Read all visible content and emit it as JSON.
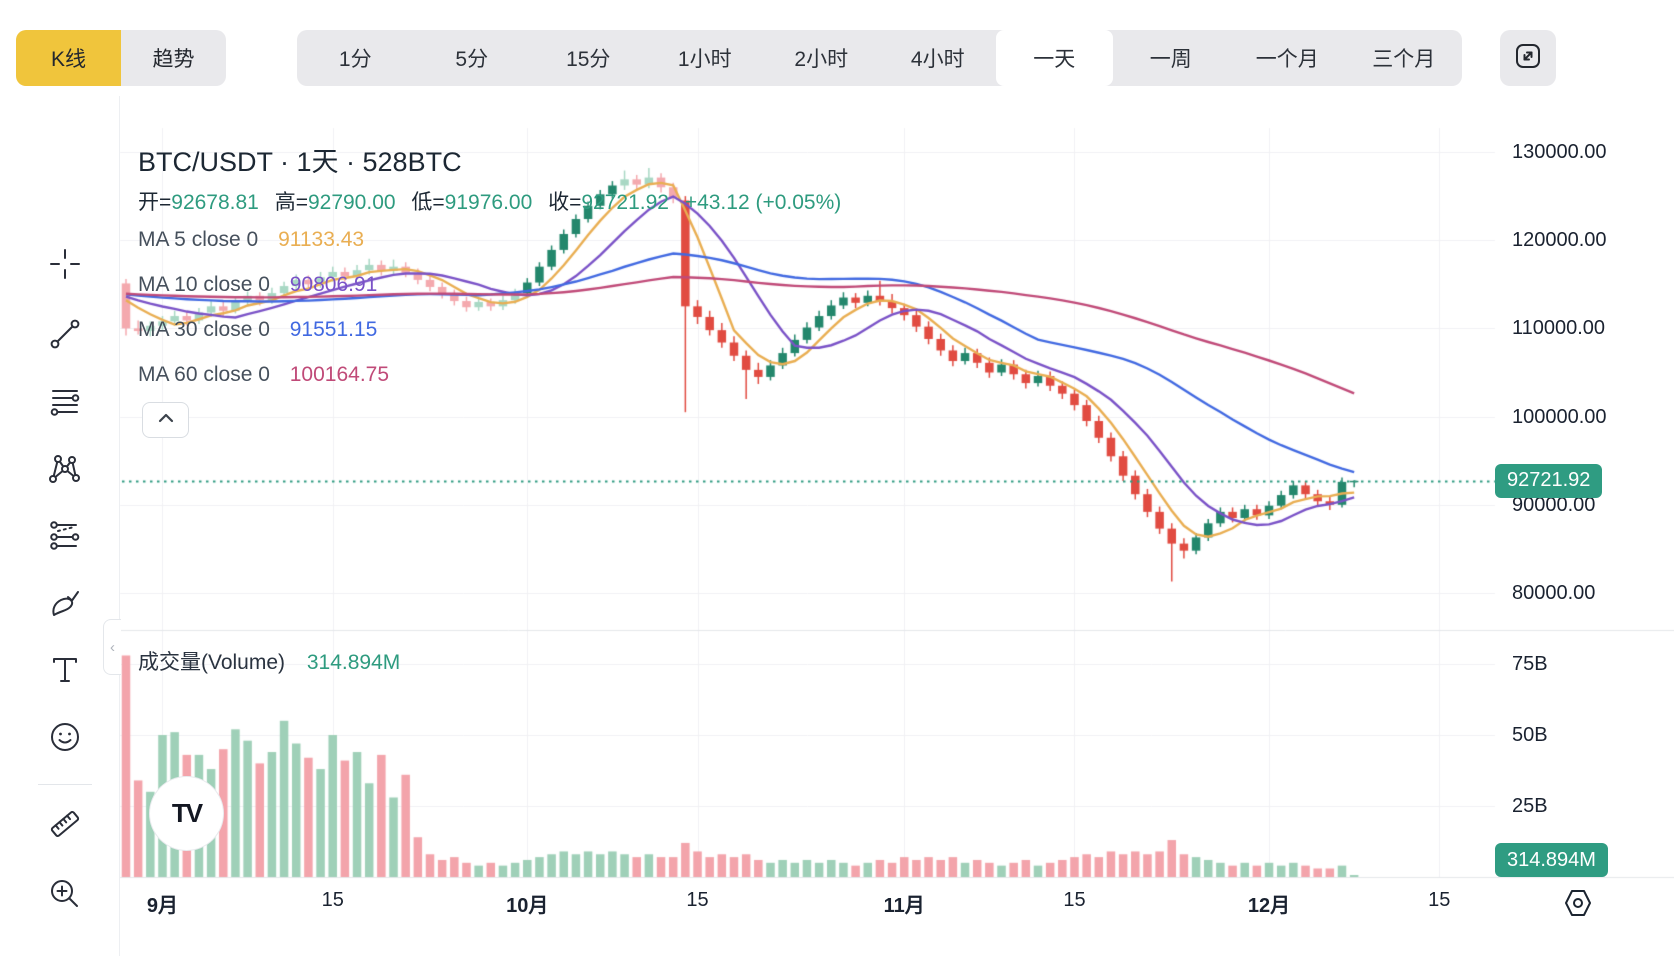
{
  "header": {
    "mode_tabs": [
      {
        "label": "K线",
        "active": true
      },
      {
        "label": "趋势",
        "active": false
      }
    ],
    "timeframes": [
      {
        "label": "1分"
      },
      {
        "label": "5分"
      },
      {
        "label": "15分"
      },
      {
        "label": "1小时"
      },
      {
        "label": "2小时"
      },
      {
        "label": "4小时"
      },
      {
        "label": "一天",
        "active": true
      },
      {
        "label": "一周"
      },
      {
        "label": "一个月"
      },
      {
        "label": "三个月"
      }
    ],
    "accent_yellow": "#F0C53C"
  },
  "sidebar": {
    "tools": [
      "crosshair",
      "trend-line",
      "horizontal-lines",
      "xabcd-pattern",
      "forecast",
      "brush",
      "text",
      "emoji",
      "ruler",
      "zoom-in"
    ]
  },
  "legend": {
    "title": "BTC/USDT · 1天 · 528BTC",
    "ohlc": {
      "open_label": "开=",
      "open": "92678.81",
      "high_label": "高=",
      "high": "92790.00",
      "low_label": "低=",
      "low": "91976.00",
      "close_label": "收=",
      "close": "92721.92",
      "change": "+43.12 (+0.05%)"
    },
    "ma_rows": [
      {
        "label": "MA 5 close 0",
        "value": "91133.43",
        "color": "#E9AE52"
      },
      {
        "label": "MA 10 close 0",
        "value": "90806.91",
        "color": "#7A52C7"
      },
      {
        "label": "MA 30 close 0",
        "value": "91551.15",
        "color": "#4169E1"
      },
      {
        "label": "MA 60 close 0",
        "value": "100164.75",
        "color": "#C04A78"
      }
    ],
    "volume_label": "成交量(Volume)",
    "volume_value": "314.894M"
  },
  "badges": {
    "price": "92721.92",
    "volume": "314.894M"
  },
  "watermark": "TV",
  "chart_data": {
    "type": "candlestick",
    "title": "BTC/USDT 1天",
    "ylabel": "USDT",
    "price_ticks": [
      {
        "label": "130000.00",
        "value": 130000
      },
      {
        "label": "120000.00",
        "value": 120000
      },
      {
        "label": "110000.00",
        "value": 110000
      },
      {
        "label": "100000.00",
        "value": 100000
      },
      {
        "label": "90000.00",
        "value": 90000
      },
      {
        "label": "80000.00",
        "value": 80000
      }
    ],
    "volume_ticks": [
      {
        "label": "75B",
        "value": 75
      },
      {
        "label": "50B",
        "value": 50
      },
      {
        "label": "25B",
        "value": 25
      }
    ],
    "time_ticks": [
      {
        "label": "9月",
        "index": 3,
        "bold": true
      },
      {
        "label": "15",
        "index": 17,
        "bold": false
      },
      {
        "label": "10月",
        "index": 33,
        "bold": true
      },
      {
        "label": "15",
        "index": 47,
        "bold": false
      },
      {
        "label": "11月",
        "index": 64,
        "bold": true
      },
      {
        "label": "15",
        "index": 78,
        "bold": false
      },
      {
        "label": "12月",
        "index": 94,
        "bold": true
      },
      {
        "label": "15",
        "index": 108,
        "bold": false
      }
    ],
    "last_close": 92721.92,
    "ma_periods": [
      5,
      10,
      30,
      60
    ],
    "ma_seed": 114000,
    "colors": {
      "up": "#23876C",
      "down": "#E14B41",
      "up_muted": "#A8D8C4",
      "down_muted": "#F4A9AE",
      "vol_up": "#9FD0B8",
      "vol_down": "#F3A4AB",
      "ma5": "#E9AE52",
      "ma10": "#7A52C7",
      "ma30": "#4169E1",
      "ma60": "#C04A78",
      "grid": "#F0F1F4",
      "separator": "#E4E7EA",
      "dotted": "#2E9B80"
    },
    "muted_indices": [
      0,
      1,
      2,
      3,
      4,
      5,
      6,
      7,
      8,
      9,
      10,
      11,
      12,
      13,
      14,
      15,
      16,
      17,
      18,
      19,
      20,
      21,
      22,
      23,
      24,
      25,
      26,
      27,
      28,
      29,
      30,
      31,
      32,
      41,
      42,
      43,
      44,
      45
    ],
    "candles": [
      [
        115100,
        115600,
        109200,
        110000,
        78
      ],
      [
        110000,
        110900,
        109300,
        109700,
        34
      ],
      [
        109700,
        110800,
        109100,
        110300,
        30
      ],
      [
        110300,
        111400,
        109800,
        110800,
        50
      ],
      [
        110800,
        112000,
        110300,
        111400,
        51
      ],
      [
        111400,
        111900,
        110300,
        110900,
        43
      ],
      [
        110900,
        112300,
        110500,
        111800,
        43
      ],
      [
        111800,
        113100,
        111300,
        112500,
        38
      ],
      [
        112500,
        113000,
        111400,
        112000,
        45
      ],
      [
        112000,
        113600,
        111700,
        113000,
        52
      ],
      [
        113000,
        114200,
        112500,
        113700,
        48
      ],
      [
        113700,
        114100,
        112600,
        113200,
        40
      ],
      [
        113200,
        114600,
        112800,
        114000,
        44
      ],
      [
        114000,
        115300,
        113500,
        114800,
        55
      ],
      [
        114800,
        116100,
        114300,
        115500,
        47
      ],
      [
        115500,
        116000,
        114400,
        115000,
        42
      ],
      [
        115000,
        116400,
        114600,
        115800,
        38
      ],
      [
        115800,
        117000,
        115300,
        116400,
        50
      ],
      [
        116400,
        116900,
        115300,
        115900,
        41
      ],
      [
        115900,
        117200,
        115500,
        116600,
        44
      ],
      [
        116600,
        117900,
        116100,
        117200,
        33
      ],
      [
        117200,
        117700,
        116000,
        116500,
        43
      ],
      [
        116500,
        117800,
        116100,
        117000,
        28
      ],
      [
        117000,
        117500,
        115800,
        116300,
        36
      ],
      [
        116300,
        116800,
        115000,
        115500,
        14
      ],
      [
        115500,
        116000,
        114200,
        114700,
        8
      ],
      [
        114700,
        115200,
        113400,
        113900,
        6
      ],
      [
        113900,
        114400,
        112600,
        113100,
        7
      ],
      [
        113100,
        113600,
        111900,
        112400,
        5
      ],
      [
        112400,
        113500,
        112000,
        113000,
        4
      ],
      [
        113000,
        113400,
        112000,
        112500,
        5
      ],
      [
        112500,
        113700,
        112100,
        113200,
        4
      ],
      [
        113200,
        114500,
        112800,
        114000,
        5
      ],
      [
        114000,
        115700,
        113600,
        115200,
        6
      ],
      [
        115200,
        117500,
        114800,
        117000,
        7
      ],
      [
        117000,
        119400,
        116600,
        118900,
        8
      ],
      [
        118900,
        121200,
        118500,
        120700,
        9
      ],
      [
        120700,
        122900,
        120300,
        122400,
        8
      ],
      [
        122400,
        124400,
        122000,
        123900,
        9
      ],
      [
        123900,
        125700,
        123500,
        125200,
        8
      ],
      [
        125200,
        126700,
        124700,
        126200,
        9
      ],
      [
        126200,
        127900,
        125700,
        126900,
        8
      ],
      [
        126900,
        127400,
        125800,
        126300,
        7
      ],
      [
        126300,
        128200,
        125900,
        127100,
        8
      ],
      [
        127100,
        127600,
        125400,
        126000,
        7
      ],
      [
        126000,
        126500,
        124200,
        124800,
        7
      ],
      [
        124500,
        125000,
        100500,
        112500,
        12
      ],
      [
        112500,
        113200,
        110500,
        111300,
        9
      ],
      [
        111300,
        112000,
        109200,
        109800,
        7
      ],
      [
        109800,
        110600,
        107800,
        108400,
        8
      ],
      [
        108400,
        109100,
        106300,
        106900,
        7
      ],
      [
        106900,
        107500,
        102000,
        105300,
        8
      ],
      [
        105300,
        106100,
        103700,
        104500,
        6
      ],
      [
        104500,
        106400,
        104100,
        105800,
        5
      ],
      [
        105800,
        107800,
        105400,
        107200,
        6
      ],
      [
        107200,
        109300,
        106800,
        108700,
        5
      ],
      [
        108700,
        110700,
        108300,
        110100,
        6
      ],
      [
        110100,
        112000,
        109700,
        111400,
        5
      ],
      [
        111400,
        113200,
        111000,
        112600,
        6
      ],
      [
        112600,
        114100,
        112200,
        113500,
        5
      ],
      [
        113500,
        114000,
        112300,
        112900,
        4
      ],
      [
        112900,
        114300,
        112500,
        113700,
        5
      ],
      [
        113700,
        115400,
        112600,
        113100,
        6
      ],
      [
        113100,
        113900,
        111700,
        112300,
        5
      ],
      [
        112300,
        112800,
        110900,
        111500,
        7
      ],
      [
        111500,
        112000,
        109600,
        110200,
        6
      ],
      [
        110200,
        110800,
        108200,
        108800,
        7
      ],
      [
        108800,
        109400,
        106900,
        107500,
        6
      ],
      [
        107500,
        108100,
        105700,
        106300,
        7
      ],
      [
        106300,
        107800,
        105900,
        107200,
        5
      ],
      [
        107200,
        107700,
        105500,
        106100,
        6
      ],
      [
        106100,
        106700,
        104400,
        105000,
        5
      ],
      [
        105000,
        106500,
        104600,
        105900,
        4
      ],
      [
        105900,
        106400,
        104200,
        104800,
        5
      ],
      [
        104800,
        105300,
        103200,
        103800,
        6
      ],
      [
        103800,
        105200,
        103400,
        104600,
        4
      ],
      [
        104600,
        105100,
        102900,
        103500,
        5
      ],
      [
        103500,
        104000,
        102000,
        102600,
        6
      ],
      [
        102600,
        103100,
        100700,
        101300,
        7
      ],
      [
        101300,
        101900,
        98900,
        99500,
        8
      ],
      [
        99500,
        100100,
        97000,
        97600,
        7
      ],
      [
        97600,
        98200,
        94900,
        95500,
        9
      ],
      [
        95500,
        96100,
        92700,
        93300,
        8
      ],
      [
        93300,
        93900,
        90600,
        91200,
        9
      ],
      [
        91200,
        91800,
        88600,
        89200,
        8
      ],
      [
        89200,
        89800,
        86700,
        87300,
        9
      ],
      [
        87300,
        87900,
        81300,
        85600,
        13
      ],
      [
        85600,
        86200,
        83900,
        84800,
        8
      ],
      [
        84800,
        86800,
        84400,
        86300,
        7
      ],
      [
        86300,
        88400,
        85900,
        87900,
        6
      ],
      [
        87900,
        89700,
        87500,
        89200,
        5
      ],
      [
        89200,
        89700,
        88000,
        88500,
        4
      ],
      [
        88500,
        90000,
        88100,
        89500,
        5
      ],
      [
        89500,
        90000,
        88300,
        88800,
        4
      ],
      [
        88800,
        90400,
        88400,
        89900,
        5
      ],
      [
        89900,
        91600,
        89500,
        91100,
        4
      ],
      [
        91100,
        92700,
        90700,
        92200,
        5
      ],
      [
        92200,
        92700,
        90700,
        91200,
        4
      ],
      [
        91200,
        91700,
        89900,
        90400,
        3
      ],
      [
        90400,
        90900,
        89400,
        90000,
        3
      ],
      [
        90000,
        93100,
        89700,
        92600,
        4
      ],
      [
        92678.81,
        92790,
        91976,
        92721.92,
        0.315
      ]
    ]
  }
}
